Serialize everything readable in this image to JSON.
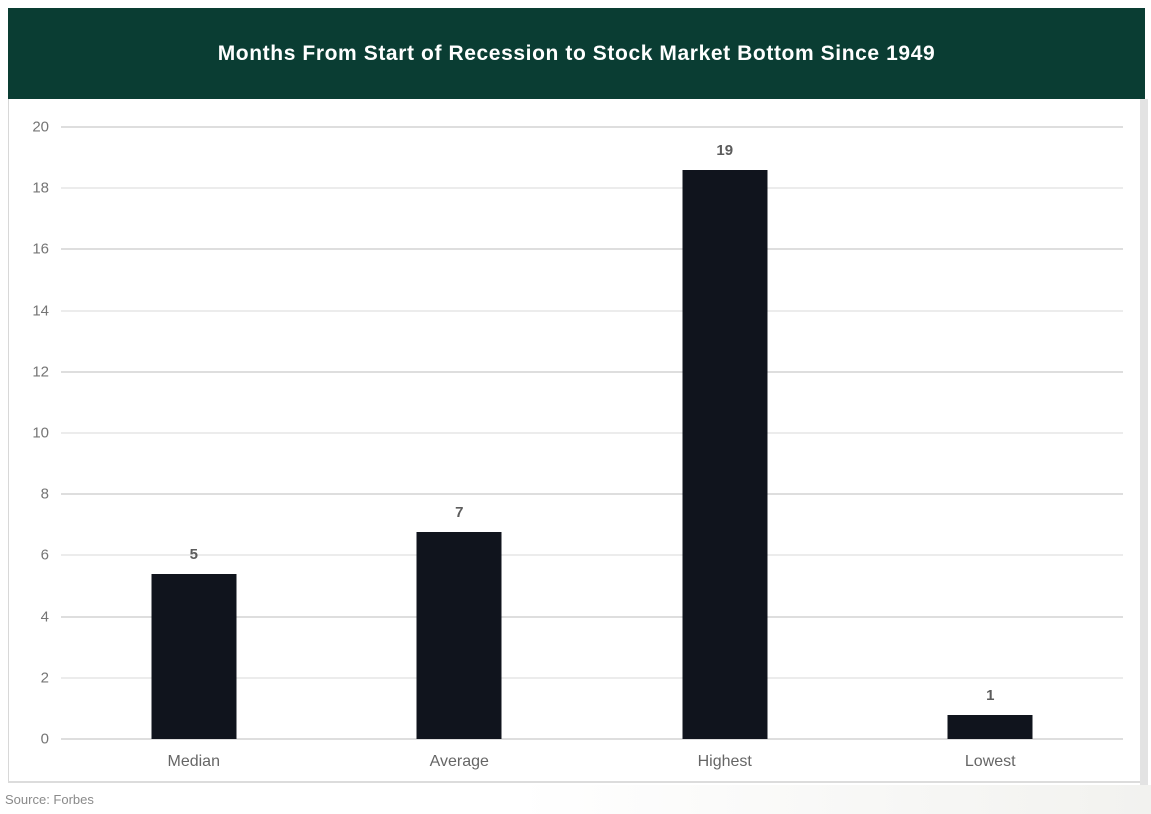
{
  "header": {
    "title": "Months From Start of Recession to Stock Market Bottom Since 1949",
    "background_color": "#0a3d33",
    "text_color": "#ffffff"
  },
  "footer": {
    "source": "Source: Forbes"
  },
  "chart_data": {
    "type": "bar",
    "title": "Months From Start of Recession to Stock Market Bottom Since 1949",
    "categories": [
      "Median",
      "Average",
      "Highest",
      "Lowest"
    ],
    "values": [
      5.4,
      6.75,
      18.6,
      0.8
    ],
    "data_labels": [
      "5",
      "7",
      "19",
      "1"
    ],
    "xlabel": "",
    "ylabel": "",
    "ylim": [
      0,
      20
    ],
    "yticks": [
      0,
      2,
      4,
      6,
      8,
      10,
      12,
      14,
      16,
      18,
      20
    ],
    "grid": true,
    "legend": false,
    "bar_color": "#10141d",
    "gridline_color": "#e6e6e6",
    "tick_label_color": "#757575",
    "category_label_color": "#666666",
    "data_label_color": "#5c5c5c"
  }
}
